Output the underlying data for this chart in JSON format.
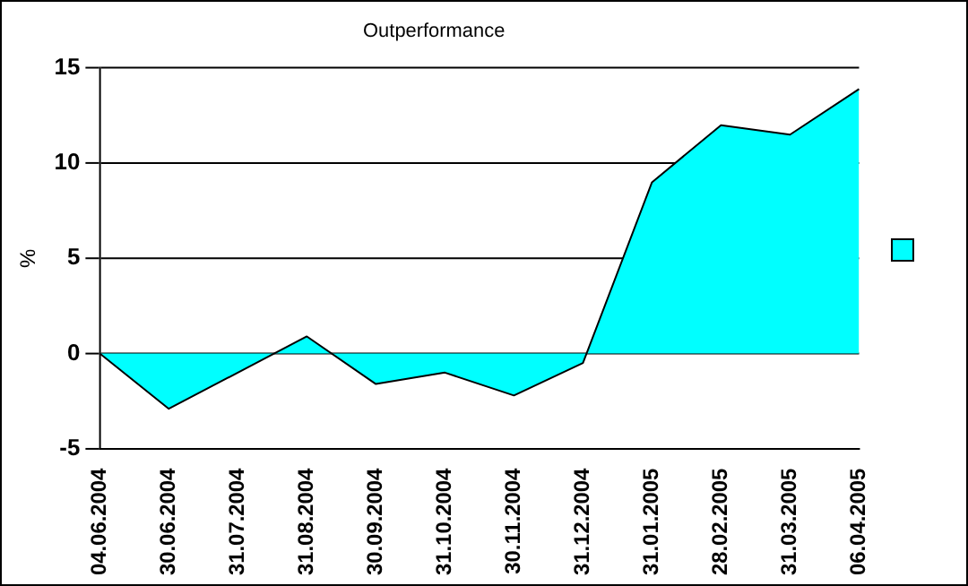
{
  "chart_data": {
    "type": "area",
    "title": "Outperformance",
    "ylabel": "%",
    "categories": [
      "04.06.2004",
      "30.06.2004",
      "31.07.2004",
      "31.08.2004",
      "30.09.2004",
      "31.10.2004",
      "30.11.2004",
      "31.12.2004",
      "31.01.2005",
      "28.02.2005",
      "31.03.2005",
      "06.04.2005"
    ],
    "series": [
      {
        "color": "#00ffff",
        "values": [
          0,
          -2.9,
          -1,
          0.9,
          -1.6,
          -1,
          -2.2,
          -0.5,
          9,
          12,
          11.5,
          13.9
        ]
      }
    ],
    "ylim": [
      -5,
      15
    ],
    "yticks": [
      -5,
      0,
      5,
      10,
      15
    ],
    "grid": "y",
    "marker": "none"
  }
}
